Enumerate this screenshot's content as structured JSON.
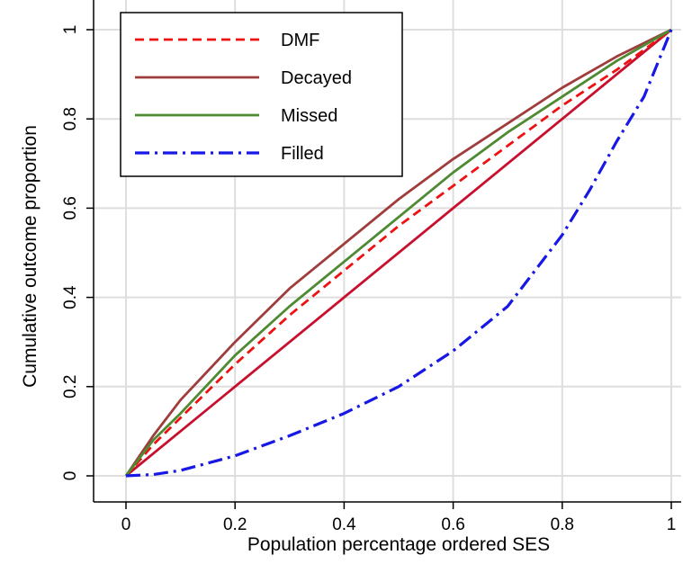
{
  "chart_data": {
    "type": "line",
    "title": "",
    "xlabel": "Population percentage ordered SES",
    "ylabel": "Cumulative outcome proportion",
    "xlim": [
      0,
      1
    ],
    "ylim": [
      0,
      1
    ],
    "x_ticks": [
      "0",
      "0.2",
      "0.4",
      "0.6",
      "0.8",
      "1"
    ],
    "y_ticks": [
      "0",
      "0.2",
      "0.4",
      "0.6",
      "0.8",
      "1"
    ],
    "grid": true,
    "legend_position": "top-left",
    "series": [
      {
        "name": "DMF",
        "color": "#ee1111",
        "style": "dashed",
        "x": [
          0,
          0.05,
          0.1,
          0.2,
          0.3,
          0.4,
          0.5,
          0.6,
          0.7,
          0.8,
          0.9,
          1.0
        ],
        "y": [
          0,
          0.07,
          0.13,
          0.25,
          0.36,
          0.46,
          0.56,
          0.65,
          0.74,
          0.83,
          0.91,
          1.0
        ]
      },
      {
        "name": "Decayed",
        "color": "#a03c3c",
        "style": "solid",
        "x": [
          0,
          0.05,
          0.1,
          0.2,
          0.3,
          0.4,
          0.5,
          0.6,
          0.7,
          0.8,
          0.9,
          1.0
        ],
        "y": [
          0,
          0.09,
          0.17,
          0.3,
          0.42,
          0.52,
          0.62,
          0.71,
          0.79,
          0.87,
          0.94,
          1.0
        ]
      },
      {
        "name": "Missed",
        "color": "#4e8a32",
        "style": "solid",
        "x": [
          0,
          0.05,
          0.1,
          0.2,
          0.3,
          0.4,
          0.5,
          0.6,
          0.7,
          0.8,
          0.9,
          1.0
        ],
        "y": [
          0,
          0.08,
          0.14,
          0.27,
          0.38,
          0.48,
          0.58,
          0.68,
          0.77,
          0.85,
          0.93,
          1.0
        ]
      },
      {
        "name": "Filled",
        "color": "#1717e6",
        "style": "dashdot",
        "x": [
          0,
          0.05,
          0.1,
          0.2,
          0.3,
          0.4,
          0.5,
          0.6,
          0.7,
          0.8,
          0.85,
          0.9,
          0.95,
          1.0
        ],
        "y": [
          0,
          0.003,
          0.012,
          0.045,
          0.09,
          0.14,
          0.2,
          0.28,
          0.38,
          0.54,
          0.64,
          0.75,
          0.85,
          1.0
        ]
      },
      {
        "name": "",
        "color": "#c8102e",
        "style": "solid",
        "x": [
          0,
          1
        ],
        "y": [
          0,
          1
        ]
      }
    ]
  }
}
